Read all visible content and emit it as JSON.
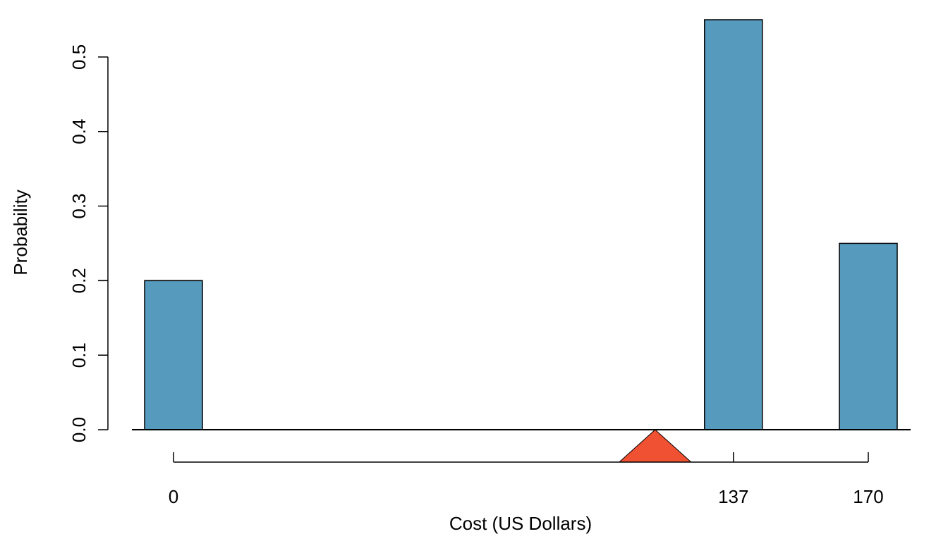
{
  "chart_data": {
    "type": "bar",
    "title": "",
    "xlabel": "Cost (US Dollars)",
    "ylabel": "Probability",
    "x": [
      0,
      137,
      170
    ],
    "x_tick_labels": [
      "0",
      "137",
      "170"
    ],
    "values": [
      0.2,
      0.55,
      0.25
    ],
    "ylim": [
      0,
      0.55
    ],
    "y_ticks": [
      0.0,
      0.1,
      0.2,
      0.3,
      0.4,
      0.5
    ],
    "y_tick_labels": [
      "0.0",
      "0.1",
      "0.2",
      "0.3",
      "0.4",
      "0.5"
    ],
    "mean_marker": 117.85,
    "grid": false,
    "colors": {
      "bar": "#569bbd",
      "bar_stroke": "#000000",
      "marker": "#f05133"
    }
  }
}
